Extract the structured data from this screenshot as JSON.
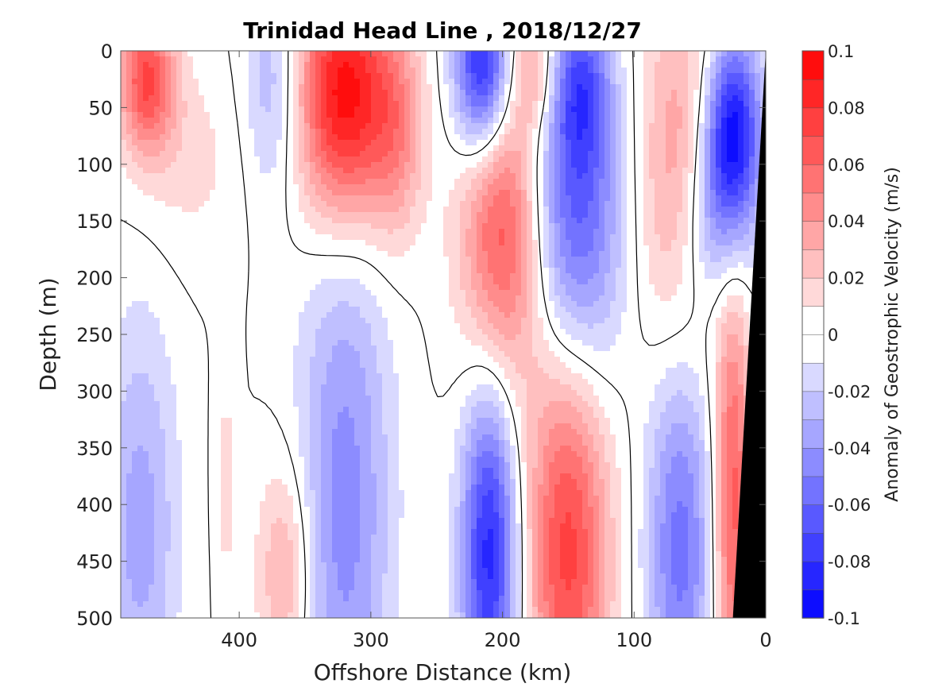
{
  "chart_data": {
    "type": "heatmap",
    "title": "Trinidad Head Line , 2018/12/27",
    "xlabel": "Offshore Distance (km)",
    "ylabel": "Depth (m)",
    "colorbar_label": "Anomaly of Geostrophic Velocity (m/s)",
    "xlim": [
      490,
      0
    ],
    "ylim": [
      0,
      500
    ],
    "x_ticks": [
      400,
      300,
      200,
      100,
      0
    ],
    "y_ticks": [
      0,
      50,
      100,
      150,
      200,
      250,
      300,
      350,
      400,
      450,
      500
    ],
    "clim": [
      -0.1,
      0.1
    ],
    "colorbar_ticks": [
      0.1,
      0.08,
      0.06,
      0.04,
      0.02,
      0,
      -0.02,
      -0.04,
      -0.06,
      -0.08,
      -0.1
    ],
    "colorbar_tick_labels": [
      "0.1",
      "0.08",
      "0.06",
      "0.04",
      "0.02",
      "0",
      "-0.02",
      "-0.04",
      "-0.06",
      "-0.08",
      "-0.1"
    ],
    "contour_levels": 20,
    "zero_contour_color": "#000000",
    "bathymetry_color": "#000000",
    "colormap": {
      "negative": "#0000ff",
      "zero": "#ffffff",
      "positive": "#ff0000"
    },
    "bathymetry": [
      {
        "x": 0,
        "depth": 0
      },
      {
        "x": 25,
        "depth": 500
      }
    ],
    "field_features": [
      {
        "x": 470,
        "depth": 25,
        "amplitude": 0.07,
        "sx": 15,
        "sy": 45
      },
      {
        "x": 440,
        "depth": 95,
        "amplitude": 0.014,
        "sx": 30,
        "sy": 60
      },
      {
        "x": 375,
        "depth": 30,
        "amplitude": -0.03,
        "sx": 15,
        "sy": 70
      },
      {
        "x": 320,
        "depth": 40,
        "amplitude": 0.1,
        "sx": 25,
        "sy": 80
      },
      {
        "x": 280,
        "depth": 70,
        "amplitude": 0.035,
        "sx": 15,
        "sy": 70
      },
      {
        "x": 215,
        "depth": 15,
        "amplitude": -0.095,
        "sx": 15,
        "sy": 55
      },
      {
        "x": 200,
        "depth": 160,
        "amplitude": 0.07,
        "sx": 22,
        "sy": 100
      },
      {
        "x": 175,
        "depth": 15,
        "amplitude": 0.035,
        "sx": 12,
        "sy": 40
      },
      {
        "x": 140,
        "depth": 30,
        "amplitude": -0.045,
        "sx": 15,
        "sy": 50
      },
      {
        "x": 145,
        "depth": 150,
        "amplitude": -0.07,
        "sx": 25,
        "sy": 110
      },
      {
        "x": 65,
        "depth": 120,
        "amplitude": 0.045,
        "sx": 22,
        "sy": 120
      },
      {
        "x": 25,
        "depth": 70,
        "amplitude": -0.095,
        "sx": 15,
        "sy": 60
      },
      {
        "x": 40,
        "depth": 150,
        "amplitude": -0.04,
        "sx": 20,
        "sy": 60
      },
      {
        "x": 475,
        "depth": 420,
        "amplitude": -0.035,
        "sx": 20,
        "sy": 130
      },
      {
        "x": 320,
        "depth": 400,
        "amplitude": -0.045,
        "sx": 25,
        "sy": 180
      },
      {
        "x": 365,
        "depth": 460,
        "amplitude": 0.035,
        "sx": 15,
        "sy": 70
      },
      {
        "x": 410,
        "depth": 380,
        "amplitude": 0.014,
        "sx": 6,
        "sy": 80
      },
      {
        "x": 210,
        "depth": 440,
        "amplitude": -0.085,
        "sx": 15,
        "sy": 110
      },
      {
        "x": 150,
        "depth": 430,
        "amplitude": 0.075,
        "sx": 22,
        "sy": 140
      },
      {
        "x": 65,
        "depth": 430,
        "amplitude": -0.055,
        "sx": 18,
        "sy": 130
      },
      {
        "x": 25,
        "depth": 400,
        "amplitude": 0.065,
        "sx": 10,
        "sy": 140
      }
    ]
  }
}
